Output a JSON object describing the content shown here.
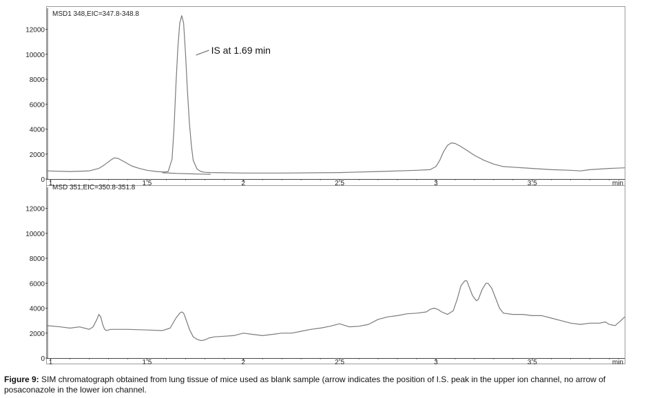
{
  "colors": {
    "trace": "#7a7a7a",
    "frame": "#9a9a9a",
    "axis": "#444444"
  },
  "chart_data": [
    {
      "type": "line",
      "title": "MSD1 348,EIC=347.8-348.8",
      "xlabel": "min",
      "xlim": [
        0.98,
        3.98
      ],
      "ylim": [
        0,
        13800
      ],
      "xticks": [
        "1",
        "1.5",
        "2",
        "2.5",
        "3",
        "3.5"
      ],
      "yticks": [
        "0",
        "2000",
        "4000",
        "6000",
        "8000",
        "10000",
        "12000"
      ],
      "annotation": {
        "text": "IS at 1.69 min",
        "x": 1.69
      },
      "series": [
        {
          "x": [
            0.98,
            1.1,
            1.2,
            1.25,
            1.28,
            1.31,
            1.33,
            1.35,
            1.38,
            1.42,
            1.46,
            1.5,
            1.55,
            1.59,
            1.61,
            1.63,
            1.64,
            1.65,
            1.66,
            1.67,
            1.68,
            1.69,
            1.7,
            1.71,
            1.72,
            1.73,
            1.74,
            1.76,
            1.78,
            1.8,
            1.83,
            1.9,
            2.0,
            2.2,
            2.5,
            2.7,
            2.9,
            2.97,
            3.0,
            3.02,
            3.04,
            3.06,
            3.08,
            3.1,
            3.13,
            3.16,
            3.2,
            3.25,
            3.3,
            3.35,
            3.4,
            3.5,
            3.6,
            3.7,
            3.75,
            3.8,
            3.9,
            3.98
          ],
          "y": [
            650,
            600,
            650,
            850,
            1150,
            1500,
            1700,
            1650,
            1400,
            1050,
            850,
            700,
            600,
            560,
            600,
            1600,
            4000,
            7500,
            10500,
            12500,
            13100,
            12500,
            10000,
            7000,
            4500,
            2700,
            1500,
            800,
            600,
            540,
            520,
            500,
            480,
            480,
            520,
            600,
            700,
            750,
            1000,
            1500,
            2200,
            2700,
            2900,
            2850,
            2600,
            2300,
            1900,
            1500,
            1200,
            1000,
            950,
            850,
            750,
            700,
            650,
            750,
            850,
            900
          ]
        },
        {
          "x": [
            1.58,
            1.65,
            1.72,
            1.78,
            1.83
          ],
          "y": [
            500,
            450,
            420,
            400,
            380
          ]
        }
      ]
    },
    {
      "type": "line",
      "title": "MSD 351,EIC=350.8-351.8",
      "xlabel": "min",
      "xlim": [
        0.98,
        3.98
      ],
      "ylim": [
        0,
        13800
      ],
      "xticks": [
        "1",
        "1.5",
        "2",
        "2.5",
        "3",
        "3.5"
      ],
      "yticks": [
        "0",
        "2000",
        "4000",
        "6000",
        "8000",
        "10000",
        "12000"
      ],
      "series": [
        {
          "x": [
            0.98,
            1.05,
            1.1,
            1.15,
            1.2,
            1.22,
            1.24,
            1.25,
            1.26,
            1.27,
            1.28,
            1.29,
            1.31,
            1.35,
            1.4,
            1.5,
            1.58,
            1.62,
            1.65,
            1.67,
            1.68,
            1.69,
            1.7,
            1.72,
            1.74,
            1.76,
            1.78,
            1.8,
            1.82,
            1.85,
            1.9,
            1.95,
            2.0,
            2.05,
            2.1,
            2.15,
            2.2,
            2.25,
            2.3,
            2.35,
            2.4,
            2.45,
            2.5,
            2.55,
            2.6,
            2.65,
            2.7,
            2.75,
            2.8,
            2.85,
            2.9,
            2.95,
            2.97,
            2.99,
            3.01,
            3.03,
            3.06,
            3.09,
            3.11,
            3.13,
            3.15,
            3.16,
            3.17,
            3.19,
            3.21,
            3.22,
            3.24,
            3.26,
            3.27,
            3.29,
            3.31,
            3.33,
            3.35,
            3.4,
            3.45,
            3.5,
            3.55,
            3.6,
            3.65,
            3.7,
            3.75,
            3.8,
            3.85,
            3.88,
            3.9,
            3.93,
            3.96,
            3.98
          ],
          "y": [
            2600,
            2500,
            2400,
            2500,
            2300,
            2500,
            3100,
            3500,
            3300,
            2700,
            2300,
            2200,
            2300,
            2300,
            2300,
            2250,
            2200,
            2400,
            3200,
            3600,
            3700,
            3600,
            3200,
            2300,
            1700,
            1500,
            1400,
            1450,
            1600,
            1700,
            1750,
            1800,
            2000,
            1900,
            1800,
            1900,
            2000,
            2000,
            2150,
            2300,
            2400,
            2550,
            2750,
            2500,
            2550,
            2700,
            3100,
            3300,
            3400,
            3550,
            3600,
            3700,
            3900,
            4000,
            3900,
            3700,
            3500,
            3800,
            4700,
            5800,
            6200,
            6200,
            5800,
            5000,
            4600,
            4700,
            5500,
            6000,
            6000,
            5600,
            4800,
            4000,
            3600,
            3500,
            3500,
            3400,
            3400,
            3200,
            3000,
            2800,
            2700,
            2800,
            2800,
            2900,
            2700,
            2600,
            3000,
            3300
          ]
        }
      ]
    }
  ],
  "caption": {
    "label": "Figure 9:",
    "text": " SIM chromatograph obtained from lung tissue of mice used as blank sample (arrow indicates the position of I.S. peak in the upper ion channel, no arrow of posaconazole in the lower ion channel."
  }
}
